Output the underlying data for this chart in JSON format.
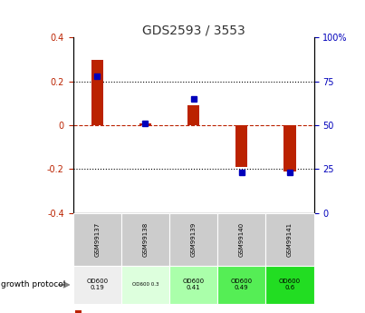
{
  "title": "GDS2593 / 3553",
  "samples": [
    "GSM99137",
    "GSM99138",
    "GSM99139",
    "GSM99140",
    "GSM99141"
  ],
  "log2_ratio": [
    0.3,
    0.01,
    0.09,
    -0.19,
    -0.21
  ],
  "percentile_rank": [
    78,
    51,
    65,
    23,
    23
  ],
  "ylim_left": [
    -0.4,
    0.4
  ],
  "ylim_right": [
    0,
    100
  ],
  "yticks_left": [
    -0.4,
    -0.2,
    0.0,
    0.2,
    0.4
  ],
  "yticks_right": [
    0,
    25,
    50,
    75,
    100
  ],
  "red_color": "#bb2200",
  "blue_color": "#0000bb",
  "growth_protocol_labels": [
    "OD600\n0.19",
    "OD600 0.3",
    "OD600\n0.41",
    "OD600\n0.49",
    "OD600\n0.6"
  ],
  "growth_protocol_colors": [
    "#eeeeee",
    "#ddffdd",
    "#aaffaa",
    "#55ee55",
    "#22dd22"
  ],
  "sample_bg_color": "#cccccc",
  "fig_width": 4.03,
  "fig_height": 3.45,
  "fig_dpi": 100
}
